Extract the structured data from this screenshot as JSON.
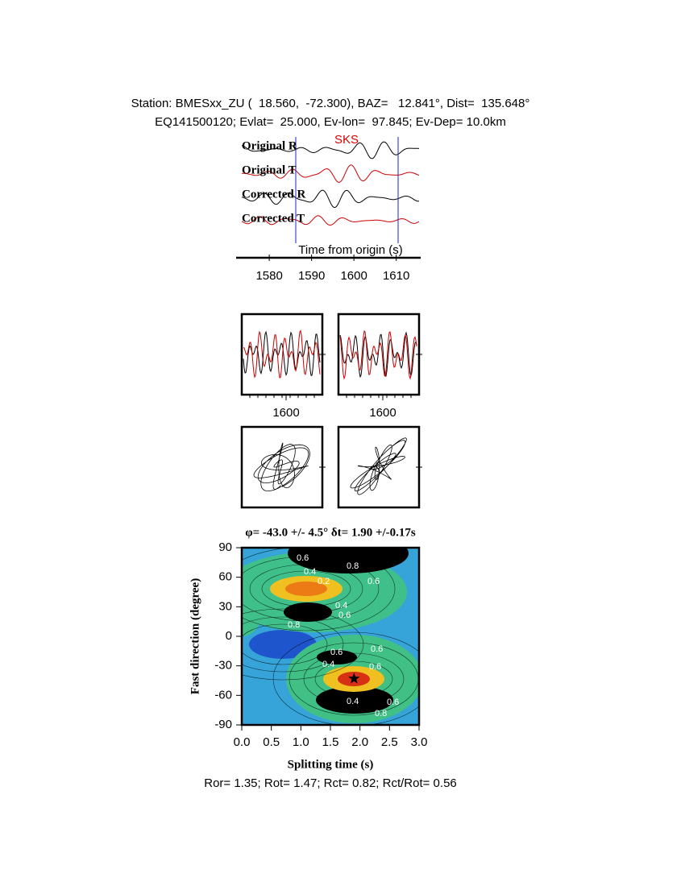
{
  "header": {
    "station_line": "Station: BMESxx_ZU (  18.560,  -72.300), BAZ=   12.841°, Dist=  135.648°",
    "event_line": "EQ141500120; Evlat=  25.000, Ev-lon=  97.845; Ev-Dep= 10.0km"
  },
  "traces": {
    "labels": [
      "Original R",
      "Original T",
      "Corrected R",
      "Corrected T"
    ],
    "phase": "SKS",
    "time_axis": {
      "label": "Time from origin (s)",
      "xlim": [
        1573.5,
        1615.4
      ],
      "xticks": [
        1580,
        1590,
        1600,
        1610
      ]
    }
  },
  "window_ticks": [
    1600,
    1600
  ],
  "grid_search": {
    "title": "φ= -43.0 +/- 4.5° δt= 1.90 +/-0.17s",
    "xlabel": "Splitting time (s)",
    "ylabel": "Fast direction (degree)",
    "xlim": [
      0,
      3
    ],
    "ylim": [
      -90,
      90
    ],
    "xticks": [
      {
        "value": 0,
        "label": "0.0"
      },
      0.5,
      {
        "value": 1,
        "label": "1.0"
      },
      1.5,
      {
        "value": 2,
        "label": "2.0"
      },
      2.5,
      {
        "value": 3,
        "label": "3.0"
      }
    ],
    "yticks": [
      90,
      60,
      30,
      0,
      -30,
      -60,
      -90
    ],
    "contour_labels": [
      0.6,
      0.8,
      0.4,
      0.2,
      0.6,
      0.4,
      0.6,
      0.8,
      0.6,
      0.6,
      0.4,
      0.6,
      0.4,
      0.6,
      0.8
    ]
  },
  "footer": "Ror= 1.35; Rot= 1.47; Rct= 0.82; Rct/Rot= 0.56"
}
